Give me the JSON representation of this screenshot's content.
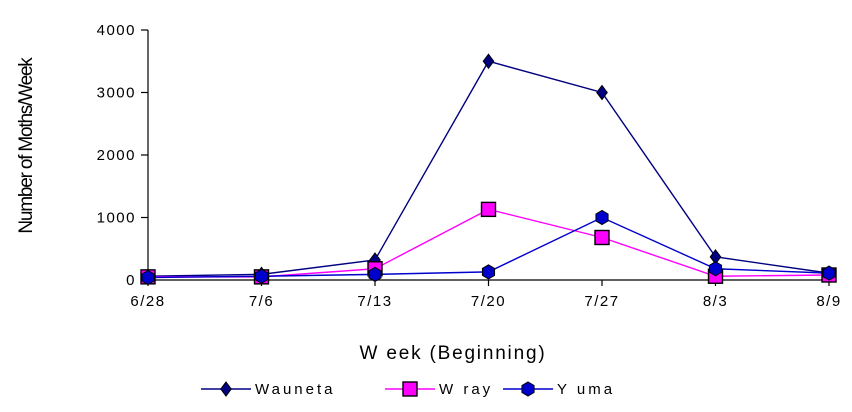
{
  "chart_data": {
    "type": "line",
    "categories": [
      "6/28",
      "7/6",
      "7/13",
      "7/20",
      "7/27",
      "8/3",
      "8/9"
    ],
    "xlabel": "W eek (Beginning)",
    "ylabel": "Number of Moths/Week",
    "ylim": [
      0,
      4000
    ],
    "yticks": [
      "0",
      "1000",
      "2000",
      "3000",
      "4000"
    ],
    "grid": false,
    "legend_position": "bottom",
    "series": [
      {
        "name": "Wauneta",
        "color": "#000080",
        "marker": "diamond",
        "values": [
          60,
          90,
          320,
          3500,
          3000,
          370,
          110
        ]
      },
      {
        "name": "W ray",
        "color": "#ff00ff",
        "marker": "square",
        "values": [
          50,
          50,
          180,
          1130,
          680,
          60,
          80
        ]
      },
      {
        "name": "Y uma",
        "color": "#0000cc",
        "marker": "hexagon",
        "values": [
          40,
          60,
          90,
          130,
          1000,
          180,
          110
        ]
      }
    ]
  }
}
